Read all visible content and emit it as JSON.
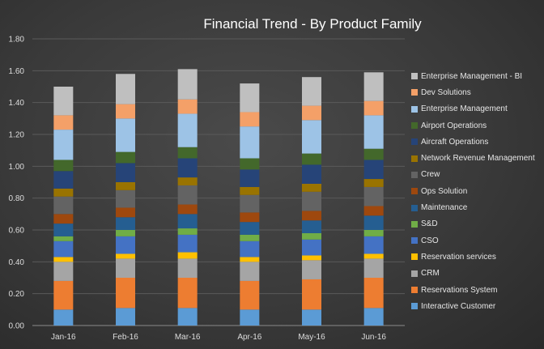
{
  "chart_data": {
    "type": "bar",
    "stacked": true,
    "title": "Financial Trend - By Product Family",
    "categories": [
      "Jan-16",
      "Feb-16",
      "Mar-16",
      "Apr-16",
      "May-16",
      "Jun-16"
    ],
    "ylim": [
      0,
      1.8
    ],
    "yticks": [
      "0.00",
      "0.20",
      "0.40",
      "0.60",
      "0.80",
      "1.00",
      "1.20",
      "1.40",
      "1.60",
      "1.80"
    ],
    "grid": true,
    "legend_position": "right",
    "series": [
      {
        "name": "Interactive Customer",
        "color": "#5b9bd5",
        "values": [
          0.1,
          0.11,
          0.11,
          0.1,
          0.1,
          0.11
        ]
      },
      {
        "name": "Reservations System",
        "color": "#ed7d31",
        "values": [
          0.18,
          0.19,
          0.19,
          0.18,
          0.19,
          0.19
        ]
      },
      {
        "name": "CRM",
        "color": "#a5a5a5",
        "values": [
          0.12,
          0.12,
          0.12,
          0.12,
          0.12,
          0.12
        ]
      },
      {
        "name": "Reservation services",
        "color": "#ffc000",
        "values": [
          0.03,
          0.03,
          0.04,
          0.03,
          0.03,
          0.03
        ]
      },
      {
        "name": "CSO",
        "color": "#4472c4",
        "values": [
          0.1,
          0.11,
          0.11,
          0.1,
          0.1,
          0.11
        ]
      },
      {
        "name": "S&D",
        "color": "#70ad47",
        "values": [
          0.03,
          0.04,
          0.04,
          0.04,
          0.04,
          0.04
        ]
      },
      {
        "name": "Maintenance",
        "color": "#255e91",
        "values": [
          0.08,
          0.08,
          0.09,
          0.08,
          0.08,
          0.09
        ]
      },
      {
        "name": "Ops Solution",
        "color": "#9e480e",
        "values": [
          0.06,
          0.06,
          0.06,
          0.06,
          0.06,
          0.06
        ]
      },
      {
        "name": "Crew",
        "color": "#636363",
        "values": [
          0.11,
          0.11,
          0.12,
          0.11,
          0.12,
          0.12
        ]
      },
      {
        "name": "Network Revenue Management",
        "color": "#997300",
        "values": [
          0.05,
          0.05,
          0.05,
          0.05,
          0.05,
          0.05
        ]
      },
      {
        "name": "Aircraft Operations",
        "color": "#264478",
        "values": [
          0.11,
          0.12,
          0.12,
          0.11,
          0.12,
          0.12
        ]
      },
      {
        "name": "Airport Operations",
        "color": "#43682b",
        "values": [
          0.07,
          0.07,
          0.07,
          0.07,
          0.07,
          0.07
        ]
      },
      {
        "name": "Enterprise Management",
        "color": "#9dc3e6",
        "values": [
          0.19,
          0.21,
          0.21,
          0.2,
          0.21,
          0.21
        ]
      },
      {
        "name": "Dev Solutions",
        "color": "#f4a068",
        "values": [
          0.09,
          0.09,
          0.09,
          0.09,
          0.09,
          0.09
        ]
      },
      {
        "name": "Enterprise Management - BI",
        "color": "#bfbfbf",
        "values": [
          0.18,
          0.19,
          0.19,
          0.18,
          0.18,
          0.18
        ]
      }
    ]
  }
}
